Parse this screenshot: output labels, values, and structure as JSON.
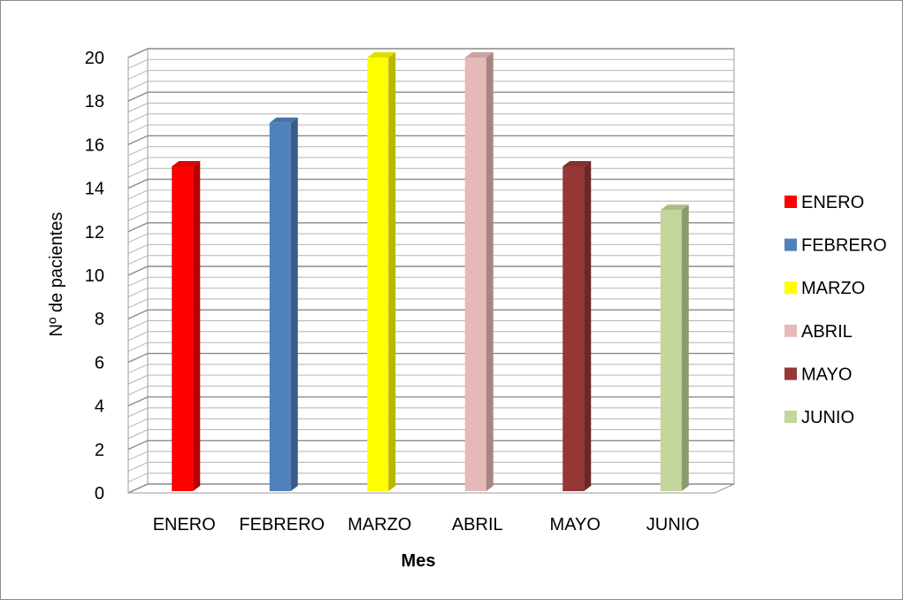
{
  "chart_data": {
    "type": "bar",
    "categories": [
      "ENERO",
      "FEBRERO",
      "MARZO",
      "ABRIL",
      "MAYO",
      "JUNIO"
    ],
    "values": [
      15,
      17,
      20,
      20,
      15,
      13
    ],
    "colors": [
      "#ff0000",
      "#4f81bd",
      "#ffff00",
      "#e6b9b8",
      "#953735",
      "#c3d69b"
    ],
    "xlabel": "Mes",
    "ylabel": "Nº de pacientes",
    "ylim": [
      0,
      20
    ],
    "yticks": [
      "0",
      "2",
      "4",
      "6",
      "8",
      "10",
      "12",
      "14",
      "16",
      "18",
      "20"
    ],
    "legend": [
      "ENERO",
      "FEBRERO",
      "MARZO",
      "ABRIL",
      "MAYO",
      "JUNIO"
    ],
    "legend_position": "right",
    "grid": true,
    "style": "3d"
  }
}
